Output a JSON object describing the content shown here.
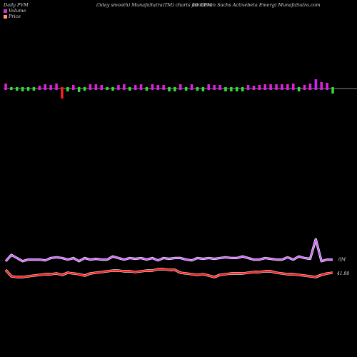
{
  "header": {
    "left": "Daily PVM",
    "center": "(5day smooth) MunafaSutra(TM) charts for GEM",
    "right": "(Goldman Sachs Activebeta Emerg) MunafaSutra.com"
  },
  "legend": [
    {
      "label": "Volume",
      "color": "#cc33cc"
    },
    {
      "label": "Price",
      "color": "#ff9966"
    }
  ],
  "chart_data": {
    "type": "bar+line",
    "ticker": "GEM",
    "volume_bars": {
      "directions": [
        "up",
        "down",
        "down",
        "down",
        "down",
        "down",
        "up",
        "up",
        "up",
        "up",
        "down",
        "down",
        "up",
        "down",
        "down",
        "up",
        "up",
        "up",
        "down",
        "down",
        "up",
        "up",
        "down",
        "up",
        "up",
        "down",
        "up",
        "up",
        "up",
        "down",
        "down",
        "up",
        "down",
        "up",
        "down",
        "down",
        "up",
        "up",
        "up",
        "down",
        "down",
        "down",
        "down",
        "up",
        "up",
        "up",
        "up",
        "up",
        "up",
        "up",
        "up",
        "up",
        "down",
        "up",
        "up",
        "up",
        "up",
        "up",
        "down"
      ],
      "colors": {
        "up": "#e020e0",
        "down": "#33dd33",
        "big_down": "#ff2020",
        "highlight": "#d020ff"
      },
      "heights": [
        7,
        4,
        5,
        6,
        5,
        5,
        4,
        6,
        5,
        7,
        16,
        6,
        5,
        7,
        5,
        6,
        6,
        5,
        4,
        5,
        5,
        6,
        5,
        5,
        6,
        5,
        6,
        5,
        5,
        6,
        6,
        6,
        5,
        6,
        5,
        6,
        6,
        5,
        5,
        6,
        6,
        6,
        6,
        5,
        4,
        5,
        6,
        6,
        6,
        6,
        6,
        7,
        6,
        5,
        7,
        13,
        9,
        8,
        9
      ],
      "special": {
        "10": "big_down",
        "55": "highlight"
      }
    },
    "volume_line": {
      "label": "0M",
      "color": "#cc66ff",
      "values": [
        0.1,
        0.5,
        0.3,
        0.1,
        0.2,
        0.2,
        0.2,
        0.15,
        0.3,
        0.35,
        0.3,
        0.2,
        0.3,
        0.1,
        0.3,
        0.2,
        0.25,
        0.2,
        0.2,
        0.4,
        0.3,
        0.2,
        0.3,
        0.25,
        0.3,
        0.2,
        0.3,
        0.15,
        0.3,
        0.25,
        0.3,
        0.3,
        0.2,
        0.15,
        0.3,
        0.25,
        0.3,
        0.25,
        0.3,
        0.35,
        0.3,
        0.3,
        0.4,
        0.3,
        0.2,
        0.2,
        0.3,
        0.25,
        0.2,
        0.2,
        0.35,
        0.2,
        0.4,
        0.3,
        0.25,
        1.5,
        0.1,
        0.2,
        0.2
      ]
    },
    "price_line": {
      "label": "41.98",
      "color": "#ff2020",
      "values": [
        0.55,
        0.1,
        0.05,
        0.05,
        0.1,
        0.15,
        0.2,
        0.25,
        0.25,
        0.3,
        0.2,
        0.35,
        0.3,
        0.25,
        0.15,
        0.3,
        0.35,
        0.4,
        0.45,
        0.5,
        0.5,
        0.45,
        0.45,
        0.4,
        0.45,
        0.5,
        0.5,
        0.6,
        0.6,
        0.55,
        0.55,
        0.35,
        0.3,
        0.25,
        0.2,
        0.25,
        0.15,
        0.05,
        0.2,
        0.25,
        0.3,
        0.3,
        0.3,
        0.35,
        0.4,
        0.4,
        0.45,
        0.45,
        0.35,
        0.3,
        0.25,
        0.25,
        0.2,
        0.15,
        0.1,
        0.05,
        0.2,
        0.3,
        0.35
      ]
    }
  }
}
